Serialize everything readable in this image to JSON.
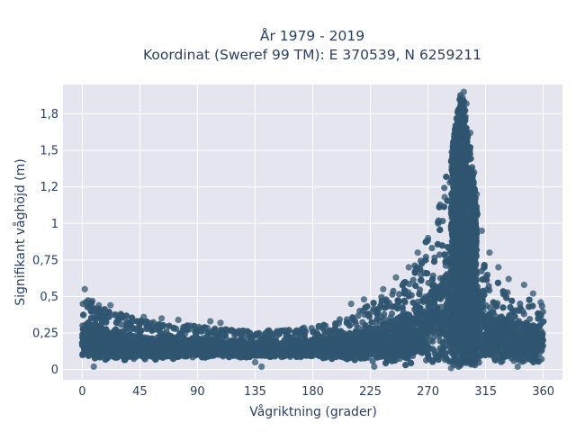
{
  "chart_data": {
    "type": "scatter",
    "title": [
      "År 1979 - 2019",
      "Koordinat (Sweref 99 TM): E 370539, N 6259211"
    ],
    "xlabel": "Vågriktning (grader)",
    "ylabel": "Signifikant våghöjd (m)",
    "xlim": [
      -15,
      375
    ],
    "ylim": [
      -0.07,
      1.95
    ],
    "x_ticks": [
      0,
      45,
      90,
      135,
      180,
      225,
      270,
      315,
      360
    ],
    "x_tick_labels": [
      "0",
      "45",
      "90",
      "135",
      "180",
      "225",
      "270",
      "315",
      "360"
    ],
    "y_ticks": [
      0,
      0.25,
      0.5,
      0.75,
      1,
      1.25,
      1.5,
      1.75
    ],
    "y_tick_labels": [
      "0",
      "0,25",
      "0,5",
      "0,75",
      "1",
      "1,2",
      "1,5",
      "1,8"
    ],
    "grid": true,
    "legend": "none",
    "colors": {
      "marker": "#2f5570",
      "plot_bg": "#e5e5ef",
      "grid": "#ffffff",
      "text": "#2a3f5f"
    },
    "envelope": {
      "direction": [
        0,
        15,
        30,
        45,
        60,
        75,
        90,
        105,
        120,
        135,
        150,
        165,
        180,
        195,
        210,
        225,
        240,
        255,
        265,
        275,
        285,
        290,
        295,
        298,
        302,
        305,
        310,
        315,
        320,
        330,
        340,
        350,
        360
      ],
      "lower": [
        0.08,
        0.07,
        0.06,
        0.06,
        0.06,
        0.07,
        0.08,
        0.08,
        0.08,
        0.08,
        0.08,
        0.08,
        0.08,
        0.07,
        0.06,
        0.05,
        0.03,
        0.02,
        0.02,
        0.02,
        0.02,
        0.02,
        0.02,
        0.02,
        0.02,
        0.02,
        0.02,
        0.03,
        0.04,
        0.04,
        0.04,
        0.04,
        0.06
      ],
      "upper": [
        0.5,
        0.42,
        0.38,
        0.34,
        0.32,
        0.31,
        0.3,
        0.28,
        0.27,
        0.26,
        0.27,
        0.28,
        0.3,
        0.33,
        0.38,
        0.45,
        0.55,
        0.65,
        0.8,
        1.05,
        1.35,
        1.6,
        1.88,
        1.85,
        1.6,
        1.35,
        0.95,
        0.78,
        0.65,
        0.55,
        0.5,
        0.48,
        0.45
      ]
    },
    "outliers": [
      {
        "x": 2,
        "y": 0.55
      },
      {
        "x": 8,
        "y": 0.47
      },
      {
        "x": 13,
        "y": 0.44
      },
      {
        "x": 9,
        "y": 0.02
      },
      {
        "x": 22,
        "y": 0.44
      },
      {
        "x": 30,
        "y": 0.38
      },
      {
        "x": 48,
        "y": 0.36
      },
      {
        "x": 62,
        "y": 0.35
      },
      {
        "x": 75,
        "y": 0.34
      },
      {
        "x": 100,
        "y": 0.33
      },
      {
        "x": 108,
        "y": 0.32
      },
      {
        "x": 135,
        "y": 0.05
      },
      {
        "x": 140,
        "y": 0.02
      },
      {
        "x": 210,
        "y": 0.45
      },
      {
        "x": 220,
        "y": 0.48
      },
      {
        "x": 235,
        "y": 0.55
      },
      {
        "x": 245,
        "y": 0.63
      },
      {
        "x": 255,
        "y": 0.7
      },
      {
        "x": 262,
        "y": 0.8
      },
      {
        "x": 270,
        "y": 0.9
      },
      {
        "x": 278,
        "y": 1.0
      },
      {
        "x": 283,
        "y": 1.18
      },
      {
        "x": 287,
        "y": 1.28
      },
      {
        "x": 289,
        "y": 1.45
      },
      {
        "x": 291,
        "y": 1.55
      },
      {
        "x": 294,
        "y": 1.7
      },
      {
        "x": 296,
        "y": 1.78
      },
      {
        "x": 297,
        "y": 1.86
      },
      {
        "x": 298,
        "y": 1.9
      },
      {
        "x": 300,
        "y": 1.82
      },
      {
        "x": 303,
        "y": 1.62
      },
      {
        "x": 306,
        "y": 1.35
      },
      {
        "x": 308,
        "y": 1.2
      },
      {
        "x": 312,
        "y": 0.95
      },
      {
        "x": 318,
        "y": 0.8
      },
      {
        "x": 325,
        "y": 0.7
      },
      {
        "x": 333,
        "y": 0.62
      },
      {
        "x": 345,
        "y": 0.58
      },
      {
        "x": 352,
        "y": 0.52
      },
      {
        "x": 358,
        "y": 0.46
      },
      {
        "x": 228,
        "y": 0.02
      },
      {
        "x": 288,
        "y": 0.01
      },
      {
        "x": 340,
        "y": 0.02
      }
    ]
  }
}
